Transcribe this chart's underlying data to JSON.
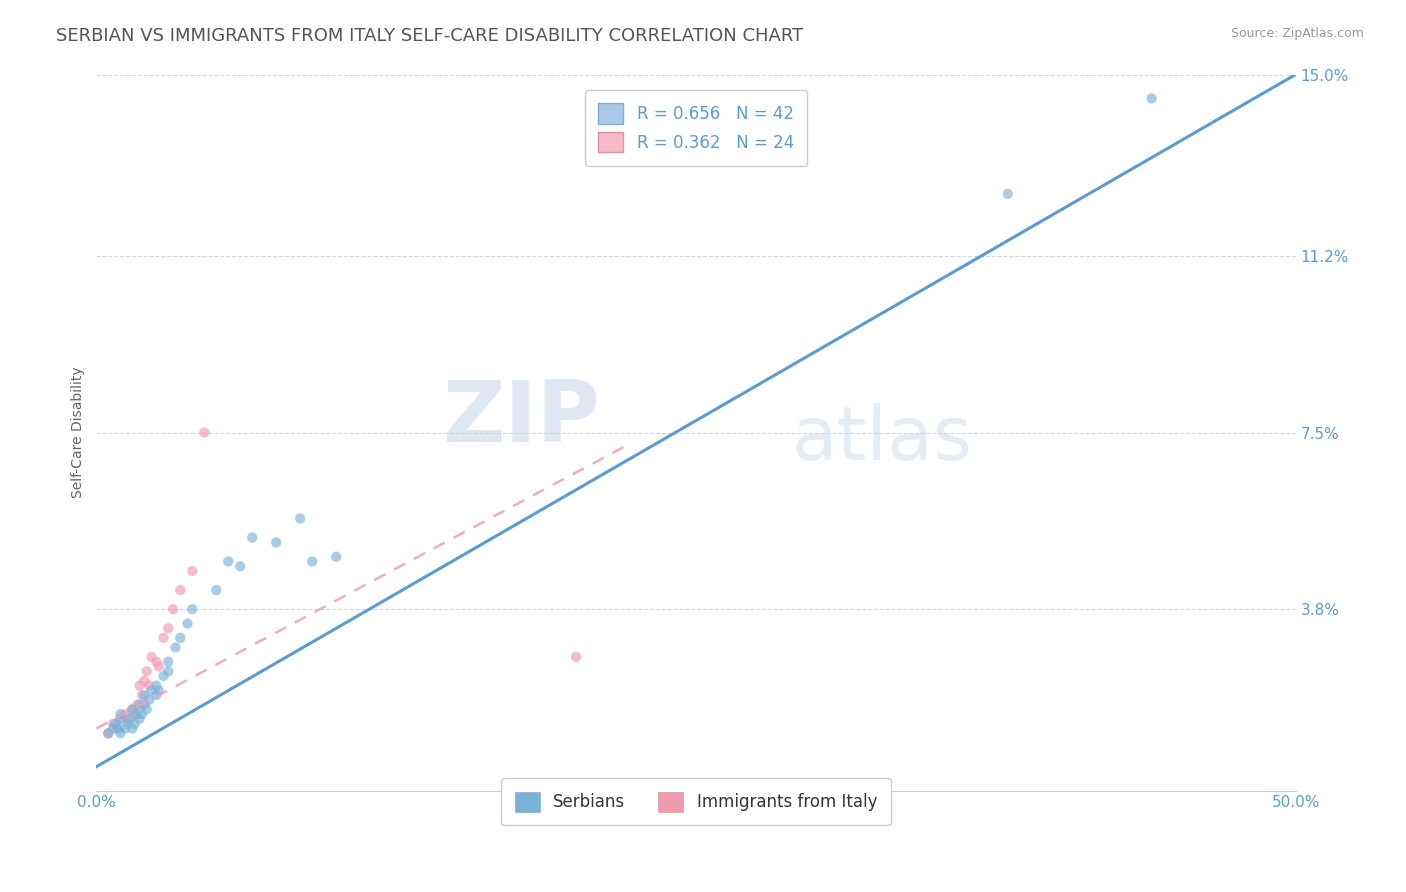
{
  "title": "SERBIAN VS IMMIGRANTS FROM ITALY SELF-CARE DISABILITY CORRELATION CHART",
  "source": "Source: ZipAtlas.com",
  "ylabel": "Self-Care Disability",
  "xlim": [
    0.0,
    0.5
  ],
  "ylim": [
    0.0,
    0.15
  ],
  "xtick_positions": [
    0.0,
    0.1,
    0.2,
    0.3,
    0.4,
    0.5
  ],
  "xticklabels": [
    "0.0%",
    "",
    "",
    "",
    "",
    "50.0%"
  ],
  "ytick_positions": [
    0.038,
    0.075,
    0.112,
    0.15
  ],
  "ytick_labels": [
    "3.8%",
    "7.5%",
    "11.2%",
    "15.0%"
  ],
  "legend_serbian": {
    "R": "0.656",
    "N": "42",
    "color": "#aac8e8"
  },
  "legend_italy": {
    "R": "0.362",
    "N": "24",
    "color": "#f7b8c8"
  },
  "serbian_color": "#7ab2d8",
  "italy_color": "#f09ab0",
  "serbian_line_color": "#5b9bd5",
  "italy_line_color": "#e8a0b8",
  "serbian_scatter_x": [
    0.005,
    0.007,
    0.008,
    0.009,
    0.01,
    0.01,
    0.01,
    0.012,
    0.013,
    0.014,
    0.015,
    0.015,
    0.016,
    0.017,
    0.018,
    0.018,
    0.019,
    0.02,
    0.02,
    0.021,
    0.022,
    0.023,
    0.025,
    0.025,
    0.026,
    0.028,
    0.03,
    0.03,
    0.033,
    0.035,
    0.038,
    0.04,
    0.05,
    0.055,
    0.06,
    0.065,
    0.075,
    0.085,
    0.09,
    0.1,
    0.38,
    0.44
  ],
  "serbian_scatter_y": [
    0.012,
    0.013,
    0.014,
    0.013,
    0.012,
    0.015,
    0.016,
    0.013,
    0.014,
    0.015,
    0.013,
    0.017,
    0.014,
    0.016,
    0.015,
    0.018,
    0.016,
    0.018,
    0.02,
    0.017,
    0.019,
    0.021,
    0.02,
    0.022,
    0.021,
    0.024,
    0.025,
    0.027,
    0.03,
    0.032,
    0.035,
    0.038,
    0.042,
    0.048,
    0.047,
    0.053,
    0.052,
    0.057,
    0.048,
    0.049,
    0.125,
    0.145
  ],
  "italy_scatter_x": [
    0.005,
    0.007,
    0.009,
    0.01,
    0.012,
    0.013,
    0.015,
    0.016,
    0.017,
    0.018,
    0.019,
    0.02,
    0.021,
    0.022,
    0.023,
    0.025,
    0.026,
    0.028,
    0.03,
    0.032,
    0.035,
    0.04,
    0.045,
    0.2
  ],
  "italy_scatter_y": [
    0.012,
    0.014,
    0.013,
    0.015,
    0.016,
    0.015,
    0.017,
    0.016,
    0.018,
    0.022,
    0.02,
    0.023,
    0.025,
    0.022,
    0.028,
    0.027,
    0.026,
    0.032,
    0.034,
    0.038,
    0.042,
    0.046,
    0.075,
    0.028
  ],
  "background_color": "#ffffff",
  "watermark_text": "ZIP",
  "watermark_text2": "atlas",
  "title_fontsize": 13,
  "axis_label_fontsize": 10,
  "tick_fontsize": 11,
  "legend_fontsize": 12
}
